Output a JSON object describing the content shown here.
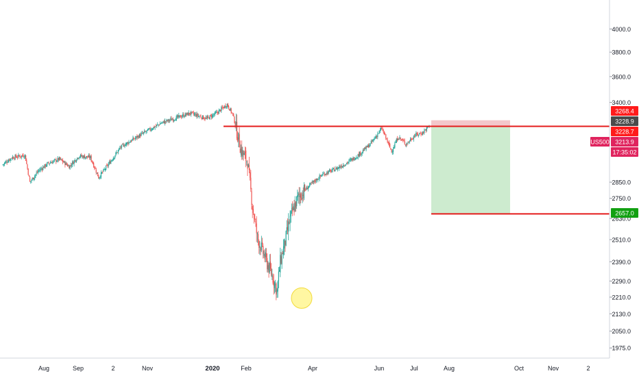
{
  "colors": {
    "background": "#ffffff",
    "up": "#26a69a",
    "down": "#ef5350",
    "level_line": "#e41b1b",
    "stop_zone": "#f4c7cb",
    "target_zone": "#cdebcf",
    "marker_fill": "#fff37a",
    "marker_stroke": "#f2da3a",
    "axis_text": "#131722",
    "label_red": "#ff1b1b",
    "label_dark": "#4a4a4a",
    "label_green": "#12a012",
    "label_symbol": "#e0245e"
  },
  "chart_data": {
    "type": "candlestick",
    "symbol": "US500",
    "y_scale": "log",
    "ylim": [
      1940,
      4150
    ],
    "y_ticks": [
      "4000.0",
      "3800.0",
      "3600.0",
      "3400.0",
      "2850.0",
      "2750.0",
      "2630.0",
      "2510.0",
      "2390.0",
      "2290.0",
      "2210.0",
      "2130.0",
      "2050.0",
      "1975.0"
    ],
    "x_ticks": [
      "Aug",
      "Sep",
      "2",
      "Nov",
      "2020",
      "Feb",
      "Apr",
      "Jun",
      "Jul",
      "Aug",
      "Oct",
      "Nov",
      "2"
    ],
    "anchors": [
      {
        "t": 0,
        "v": 2960
      },
      {
        "t": 12,
        "v": 3010
      },
      {
        "t": 28,
        "v": 3025
      },
      {
        "t": 34,
        "v": 2850
      },
      {
        "t": 44,
        "v": 2920
      },
      {
        "t": 56,
        "v": 2970
      },
      {
        "t": 70,
        "v": 3000
      },
      {
        "t": 82,
        "v": 2950
      },
      {
        "t": 94,
        "v": 3020
      },
      {
        "t": 108,
        "v": 3010
      },
      {
        "t": 118,
        "v": 2880
      },
      {
        "t": 128,
        "v": 2950
      },
      {
        "t": 145,
        "v": 3080
      },
      {
        "t": 165,
        "v": 3150
      },
      {
        "t": 195,
        "v": 3250
      },
      {
        "t": 230,
        "v": 3320
      },
      {
        "t": 250,
        "v": 3280
      },
      {
        "t": 262,
        "v": 3320
      },
      {
        "t": 275,
        "v": 3385
      },
      {
        "t": 282,
        "v": 3310
      },
      {
        "t": 292,
        "v": 3060
      },
      {
        "t": 300,
        "v": 2980
      },
      {
        "t": 306,
        "v": 2700
      },
      {
        "t": 312,
        "v": 2520
      },
      {
        "t": 318,
        "v": 2450
      },
      {
        "t": 324,
        "v": 2380
      },
      {
        "t": 330,
        "v": 2320
      },
      {
        "t": 336,
        "v": 2240
      },
      {
        "t": 340,
        "v": 2390
      },
      {
        "t": 346,
        "v": 2500
      },
      {
        "t": 352,
        "v": 2630
      },
      {
        "t": 362,
        "v": 2760
      },
      {
        "t": 378,
        "v": 2840
      },
      {
        "t": 392,
        "v": 2900
      },
      {
        "t": 406,
        "v": 2930
      },
      {
        "t": 420,
        "v": 2970
      },
      {
        "t": 434,
        "v": 3020
      },
      {
        "t": 450,
        "v": 3100
      },
      {
        "t": 464,
        "v": 3210
      },
      {
        "t": 470,
        "v": 3130
      },
      {
        "t": 476,
        "v": 3050
      },
      {
        "t": 484,
        "v": 3150
      },
      {
        "t": 494,
        "v": 3100
      },
      {
        "t": 504,
        "v": 3160
      },
      {
        "t": 514,
        "v": 3180
      },
      {
        "t": 522,
        "v": 3228
      }
    ],
    "levels": [
      {
        "name": "resistance",
        "value": 3225
      },
      {
        "name": "target",
        "value": 2657.0
      }
    ],
    "trade": {
      "entry": 3228.7,
      "stop": 3268.4,
      "target": 2657.0
    },
    "highlight_low": 2192,
    "price_labels": [
      {
        "text": "3268.4",
        "value": 3268.4,
        "style": "red"
      },
      {
        "text": "3228.9",
        "value": 3228.9,
        "style": "dark"
      },
      {
        "text": "3228.7",
        "value": 3228.7,
        "style": "red"
      },
      {
        "text": "3213.9",
        "value": 3213.9,
        "style": "symbol"
      },
      {
        "text": "17:35:02",
        "value": 3213.9,
        "style": "timer"
      },
      {
        "text": "2657.0",
        "value": 2657.0,
        "style": "green"
      }
    ],
    "symbol_label": "US500"
  }
}
